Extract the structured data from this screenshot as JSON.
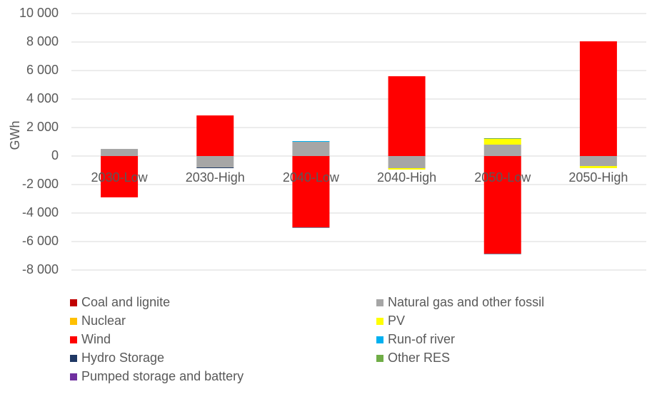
{
  "chart_data": {
    "type": "stacked-bar",
    "y_label": "GWh",
    "categories": [
      "2030-Low",
      "2030-High",
      "2040-Low",
      "2040-High",
      "2050-Low",
      "2050-High"
    ],
    "series": [
      {
        "name": "Coal and lignite",
        "color": "#c00000",
        "values": [
          0,
          0,
          0,
          0,
          0,
          0
        ]
      },
      {
        "name": "Natural gas and other fossil",
        "color": "#a6a6a6",
        "values": [
          500,
          -800,
          1000,
          -850,
          800,
          -700
        ]
      },
      {
        "name": "Nuclear",
        "color": "#ffc000",
        "values": [
          0,
          0,
          0,
          0,
          0,
          0
        ]
      },
      {
        "name": "PV",
        "color": "#ffff00",
        "values": [
          0,
          0,
          0,
          -100,
          400,
          -150
        ]
      },
      {
        "name": "Wind",
        "color": "#ff0000",
        "values": [
          -2900,
          2850,
          -5000,
          5600,
          -6850,
          8050
        ]
      },
      {
        "name": "Run-of river",
        "color": "#00b0f0",
        "values": [
          0,
          0,
          50,
          0,
          0,
          0
        ]
      },
      {
        "name": "Hydro Storage",
        "color": "#1f3864",
        "values": [
          0,
          -50,
          -30,
          0,
          -30,
          0
        ]
      },
      {
        "name": "Other RES",
        "color": "#70ad47",
        "values": [
          0,
          0,
          0,
          0,
          50,
          0
        ]
      },
      {
        "name": "Pumped storage and battery",
        "color": "#7030a0",
        "values": [
          0,
          0,
          0,
          0,
          0,
          0
        ]
      }
    ],
    "ylim": [
      -8000,
      10000
    ],
    "yticks": [
      {
        "value": -8000,
        "label": "-8 000"
      },
      {
        "value": -6000,
        "label": "-6 000"
      },
      {
        "value": -4000,
        "label": "-4 000"
      },
      {
        "value": -2000,
        "label": "-2 000"
      },
      0,
      {
        "value": 2000,
        "label": "2 000"
      },
      {
        "value": 4000,
        "label": "4 000"
      },
      {
        "value": 6000,
        "label": "6 000"
      },
      {
        "value": 8000,
        "label": "8 000"
      },
      {
        "value": 10000,
        "label": "10 000"
      }
    ],
    "grid": true,
    "legend": "bottom"
  }
}
